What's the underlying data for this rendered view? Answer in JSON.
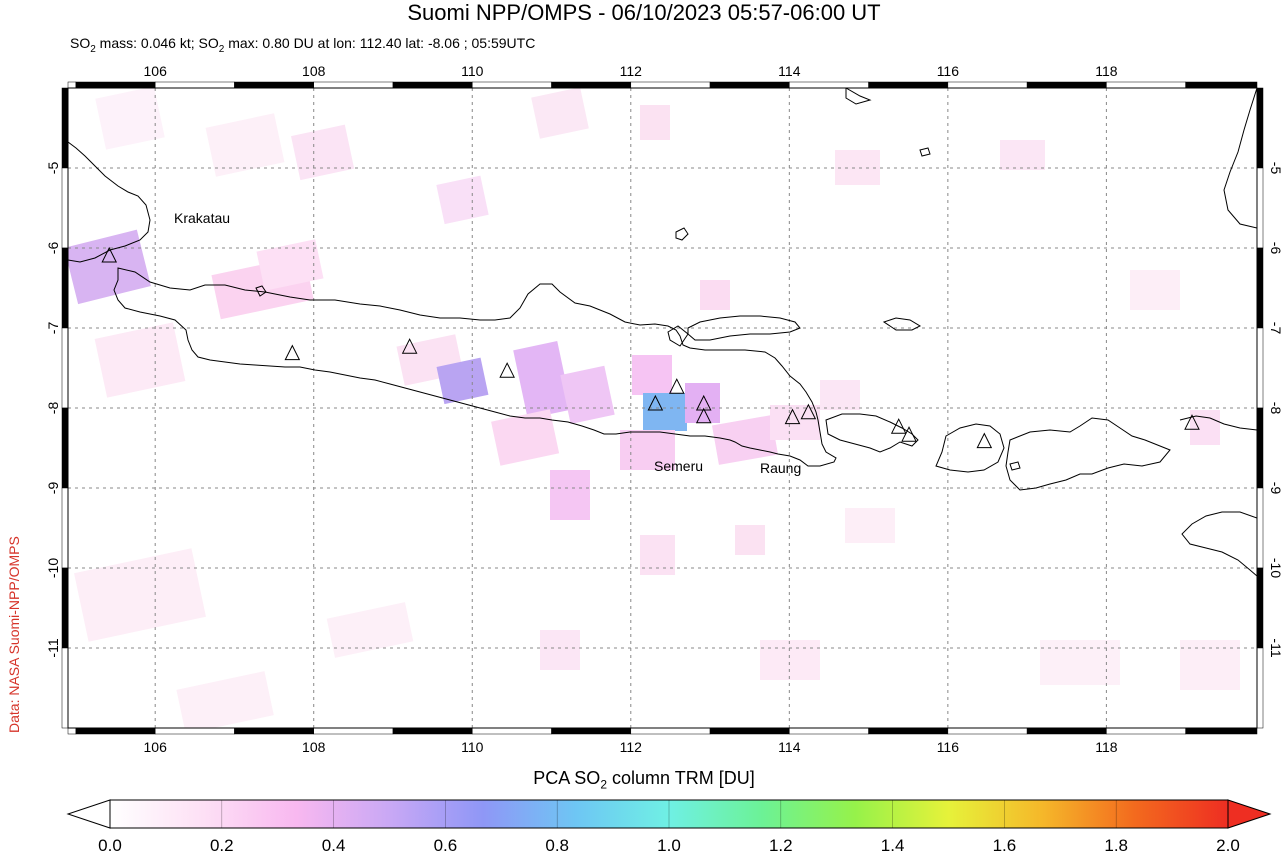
{
  "header": {
    "title": "Suomi NPP/OMPS - 06/10/2023 05:57-06:00 UT",
    "subtitle_mass_prefix": "SO",
    "subtitle_mass_sub": "2",
    "subtitle_mass_value": " mass: 0.046 kt; ",
    "subtitle_max_prefix": "SO",
    "subtitle_max_sub": "2",
    "subtitle_max_value": " max: 0.80 DU at lon: 112.40 lat: -8.06 ; 05:59UTC"
  },
  "credit": "Data: NASA Suomi-NPP/OMPS",
  "map": {
    "lon_range": [
      104.9,
      119.9
    ],
    "lat_range": [
      -12.0,
      -4.0
    ],
    "lon_ticks": [
      "106",
      "108",
      "110",
      "112",
      "114",
      "116",
      "118"
    ],
    "lat_ticks": [
      "-5",
      "-6",
      "-7",
      "-8",
      "-9",
      "-10",
      "-11"
    ],
    "volcano_labels": [
      {
        "name": "Krakatau",
        "lon": 105.42,
        "lat": -6.1
      },
      {
        "name": "Semeru",
        "lon": 112.92,
        "lat": -8.11
      },
      {
        "name": "Raung",
        "lon": 114.04,
        "lat": -8.12
      }
    ],
    "volcanoes": [
      {
        "lon": 105.42,
        "lat": -6.1
      },
      {
        "lon": 107.73,
        "lat": -7.32
      },
      {
        "lon": 109.21,
        "lat": -7.24
      },
      {
        "lon": 110.44,
        "lat": -7.54
      },
      {
        "lon": 112.31,
        "lat": -7.95
      },
      {
        "lon": 112.58,
        "lat": -7.74
      },
      {
        "lon": 112.92,
        "lat": -7.95
      },
      {
        "lon": 112.92,
        "lat": -8.11
      },
      {
        "lon": 114.04,
        "lat": -8.12
      },
      {
        "lon": 114.24,
        "lat": -8.06
      },
      {
        "lon": 115.38,
        "lat": -8.24
      },
      {
        "lon": 115.51,
        "lat": -8.34
      },
      {
        "lon": 116.46,
        "lat": -8.42
      },
      {
        "lon": 119.08,
        "lat": -8.19
      }
    ],
    "so2_max": {
      "lon": 112.4,
      "lat": -8.06,
      "value_du": 0.8
    }
  },
  "colorbar": {
    "label_prefix": "PCA SO",
    "label_sub": "2",
    "label_suffix": " column TRM [DU]",
    "ticks": [
      "0.0",
      "0.2",
      "0.4",
      "0.6",
      "0.8",
      "1.0",
      "1.2",
      "1.4",
      "1.6",
      "1.8",
      "2.0"
    ],
    "range": [
      0.0,
      2.0
    ],
    "colors": [
      "#ffffff",
      "#fde0f5",
      "#f8b8f0",
      "#c9a8f5",
      "#8f97f6",
      "#6ec6f4",
      "#6ff0e4",
      "#6cf296",
      "#96f24a",
      "#e6f23a",
      "#f5b82a",
      "#f36a1e",
      "#ee2e22"
    ]
  }
}
